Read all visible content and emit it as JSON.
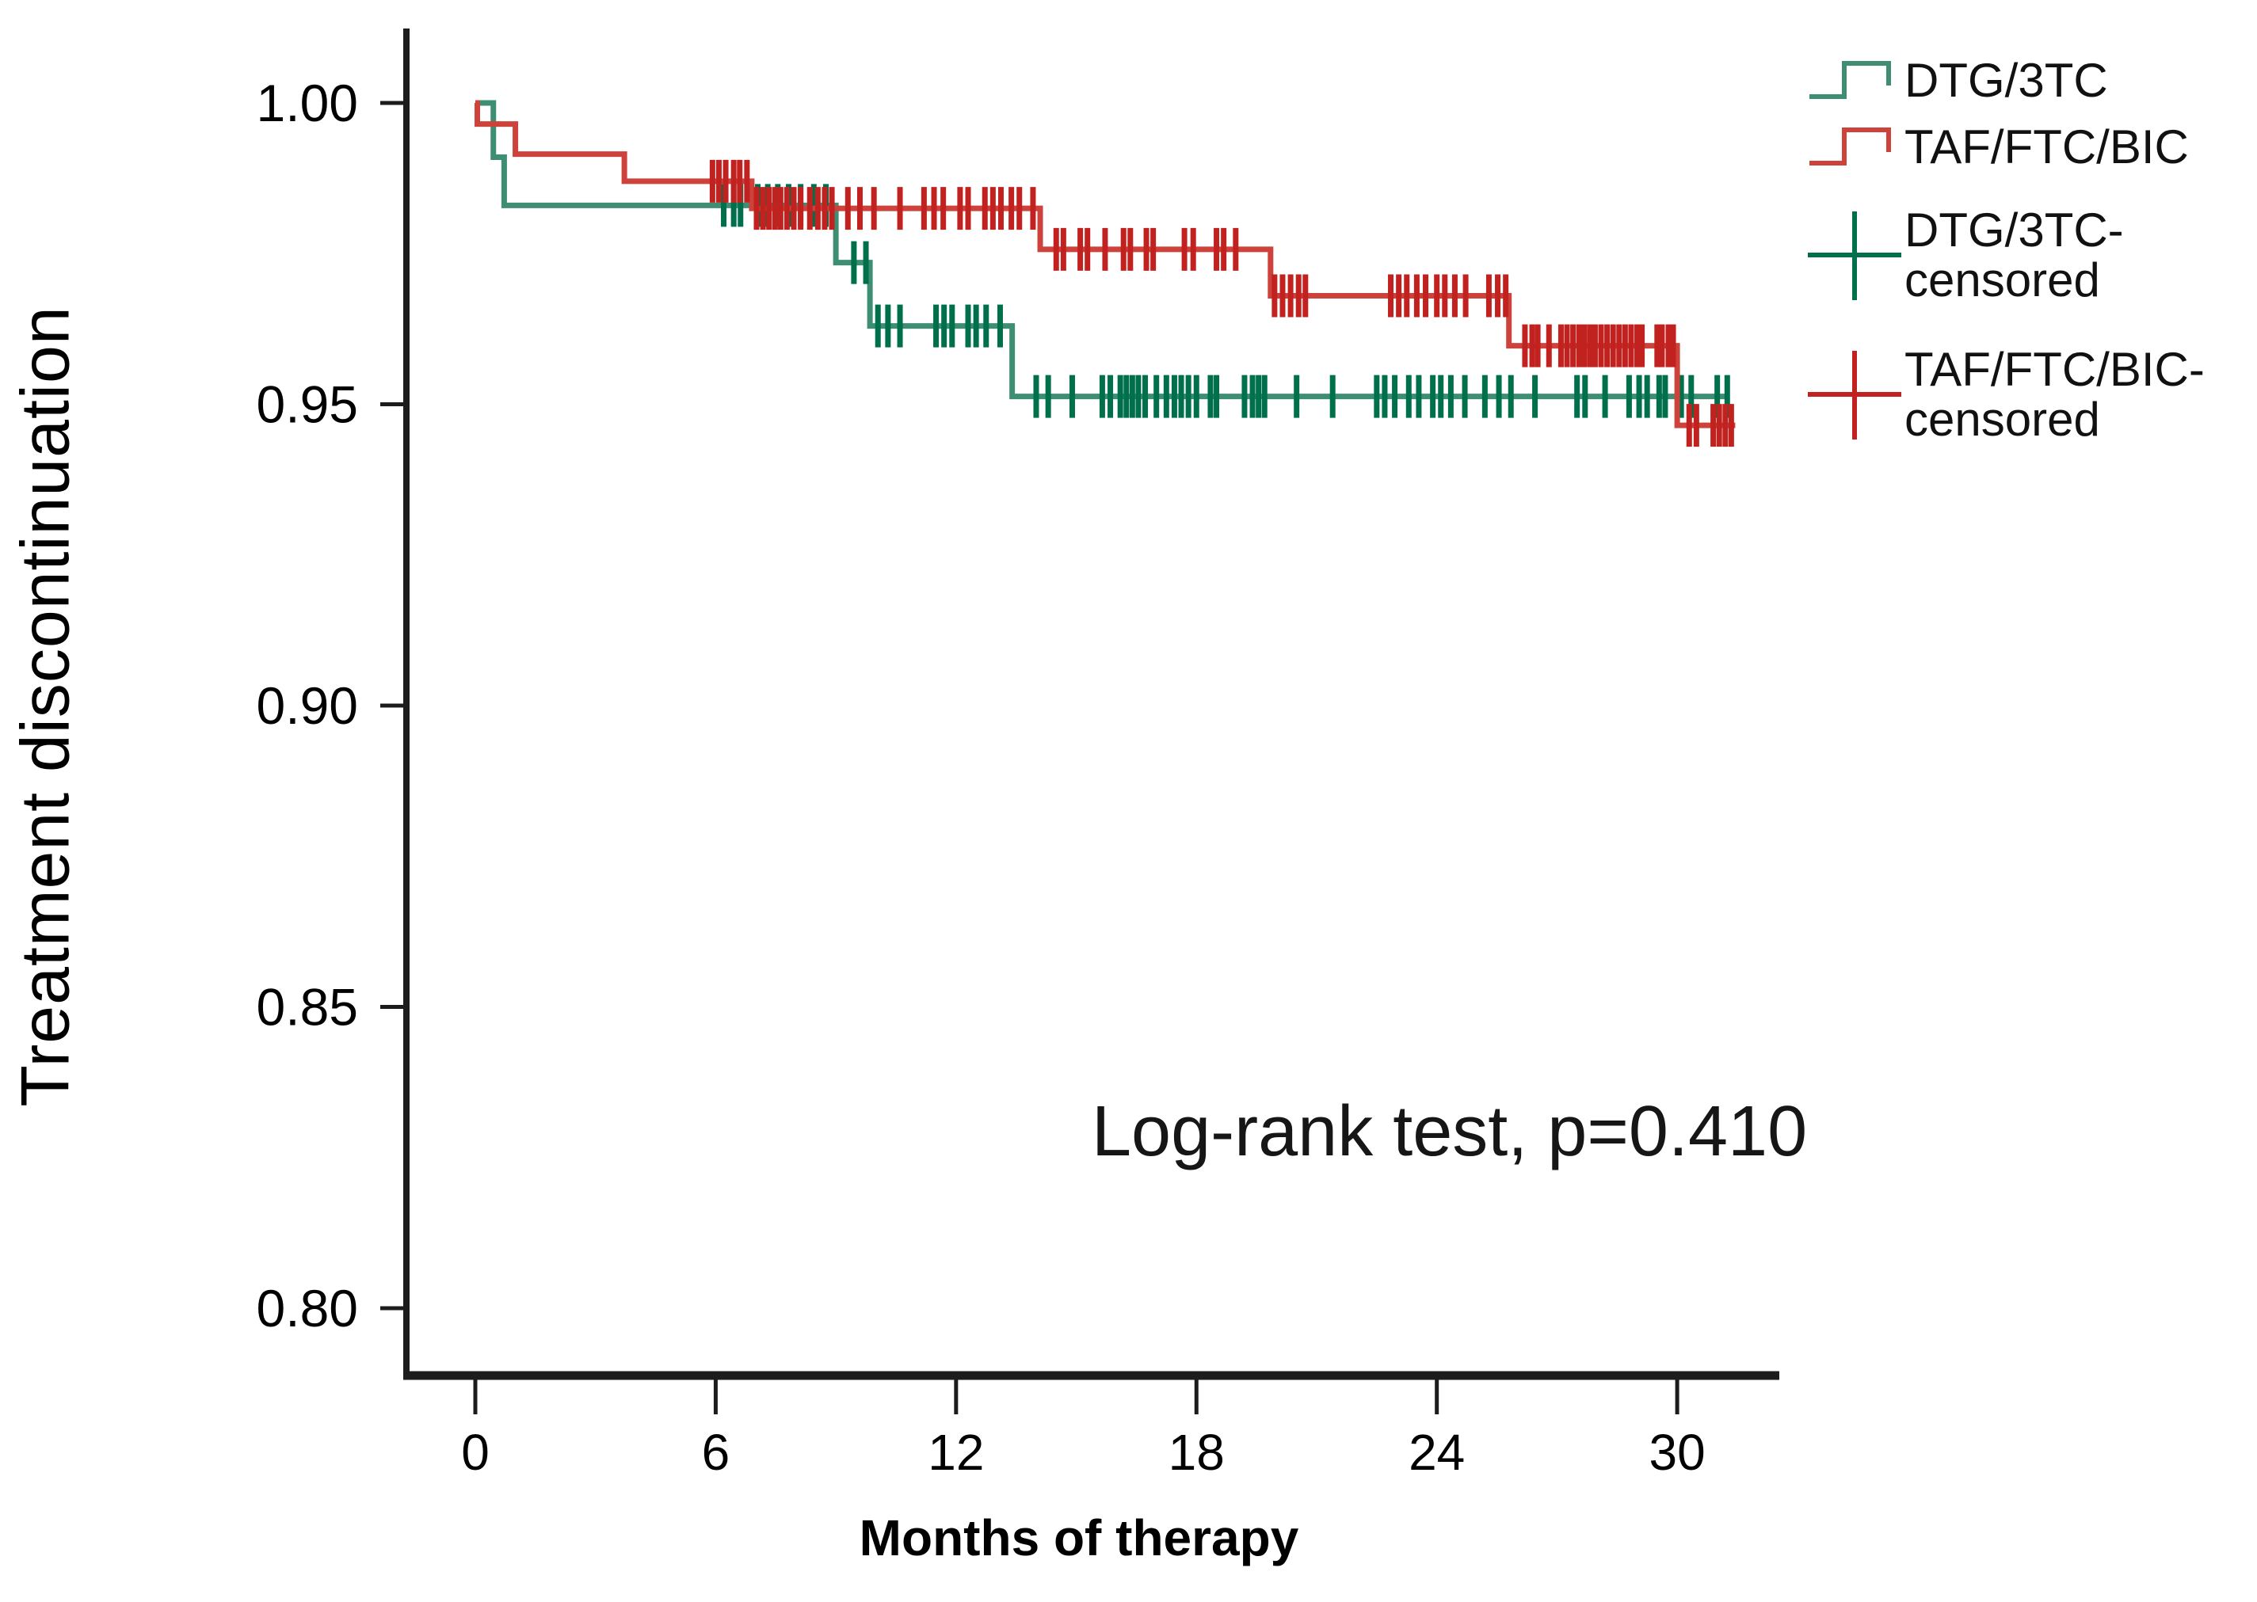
{
  "chart_data": {
    "type": "line",
    "subtype": "kaplan_meier_step",
    "title": "",
    "xlabel": "Months of therapy",
    "ylabel": "Treatment discontinuation",
    "annotation": {
      "text": "Log-rank test, p=0.410",
      "x_month": 15.4,
      "y_value": 0.826
    },
    "x_ticks": [
      0,
      6,
      12,
      18,
      24,
      30
    ],
    "x_tick_labels": [
      "0",
      "6",
      "12",
      "18",
      "24",
      "30"
    ],
    "y_tick_values": [
      1.0,
      0.95,
      0.9,
      0.85,
      0.8
    ],
    "y_tick_labels": [
      "1.00",
      "0.95",
      "0.90",
      "0.85",
      "0.80"
    ],
    "xlim": [
      -1.75,
      32.6
    ],
    "ylim": [
      0.789,
      1.012
    ],
    "grid": false,
    "legend_position": "top-right-outside",
    "axis_color": "#1c1c1c",
    "series": [
      {
        "name": "DTG/3TC",
        "color": "#3E8E74",
        "censor_color": "#00704C",
        "steps": [
          [
            0,
            1.0
          ],
          [
            0.45,
            0.991
          ],
          [
            0.72,
            0.983
          ],
          [
            9.0,
            0.9735
          ],
          [
            9.85,
            0.963
          ],
          [
            13.4,
            0.9513
          ]
        ],
        "end_month": 31.3,
        "censor_months": [
          6.2,
          6.45,
          6.62,
          7.05,
          7.3,
          7.55,
          7.82,
          8.12,
          8.45,
          8.75,
          9.45,
          9.75,
          10.05,
          10.3,
          10.6,
          11.5,
          11.7,
          11.9,
          12.3,
          12.5,
          12.75,
          13.1,
          14.0,
          14.3,
          14.9,
          15.65,
          15.85,
          16.1,
          16.25,
          16.4,
          16.55,
          16.72,
          17.0,
          17.25,
          17.45,
          17.62,
          17.8,
          18.0,
          18.35,
          18.5,
          19.2,
          19.4,
          19.55,
          19.7,
          20.5,
          21.4,
          22.5,
          22.7,
          22.95,
          23.3,
          23.55,
          23.9,
          24.1,
          24.35,
          24.7,
          25.2,
          25.55,
          25.85,
          26.45,
          27.5,
          27.7,
          28.2,
          28.8,
          29.05,
          29.25,
          29.55,
          29.7,
          30.1,
          30.35,
          31.0,
          31.25
        ]
      },
      {
        "name": "TAF/FTC/BIC",
        "color": "#CD423B",
        "censor_color": "#C2221F",
        "steps": [
          [
            0,
            1.0
          ],
          [
            0.05,
            0.9965
          ],
          [
            1.0,
            0.9915
          ],
          [
            3.72,
            0.987
          ],
          [
            6.9,
            0.9825
          ],
          [
            14.1,
            0.9757
          ],
          [
            19.85,
            0.968
          ],
          [
            25.8,
            0.9597
          ],
          [
            30.0,
            0.9465
          ]
        ],
        "end_month": 31.45,
        "censor_months": [
          5.92,
          6.08,
          6.25,
          6.45,
          6.6,
          6.78,
          7.02,
          7.18,
          7.33,
          7.48,
          7.62,
          7.78,
          7.95,
          8.12,
          8.35,
          8.55,
          8.72,
          8.9,
          9.3,
          9.6,
          9.95,
          10.6,
          11.2,
          11.45,
          11.68,
          12.1,
          12.3,
          12.72,
          12.92,
          13.12,
          13.38,
          13.58,
          13.92,
          14.5,
          14.68,
          15.1,
          15.28,
          15.72,
          16.18,
          16.35,
          16.75,
          16.92,
          17.7,
          17.92,
          18.5,
          18.68,
          18.98,
          19.95,
          20.15,
          20.35,
          20.55,
          20.72,
          22.85,
          23.05,
          23.25,
          23.5,
          23.72,
          24.0,
          24.2,
          24.45,
          24.72,
          25.3,
          25.52,
          25.72,
          26.2,
          26.38,
          26.52,
          26.8,
          27.1,
          27.25,
          27.4,
          27.55,
          27.68,
          27.82,
          27.95,
          28.1,
          28.25,
          28.4,
          28.55,
          28.7,
          28.85,
          29.0,
          29.12,
          29.5,
          29.62,
          29.78,
          29.9,
          30.3,
          30.48,
          30.9,
          31.05,
          31.2,
          31.35
        ]
      }
    ],
    "legend": [
      {
        "label": "DTG/3TC",
        "symbol": "step-line",
        "series": 0
      },
      {
        "label": "TAF/FTC/BIC",
        "symbol": "step-line",
        "series": 1
      },
      {
        "label": "DTG/3TC-censored",
        "label_lines": [
          "DTG/3TC-",
          "censored"
        ],
        "symbol": "plus-marker",
        "series": 0
      },
      {
        "label": "TAF/FTC/BIC-censored",
        "label_lines": [
          "TAF/FTC/BIC-",
          "censored"
        ],
        "symbol": "plus-marker",
        "series": 1
      }
    ]
  }
}
